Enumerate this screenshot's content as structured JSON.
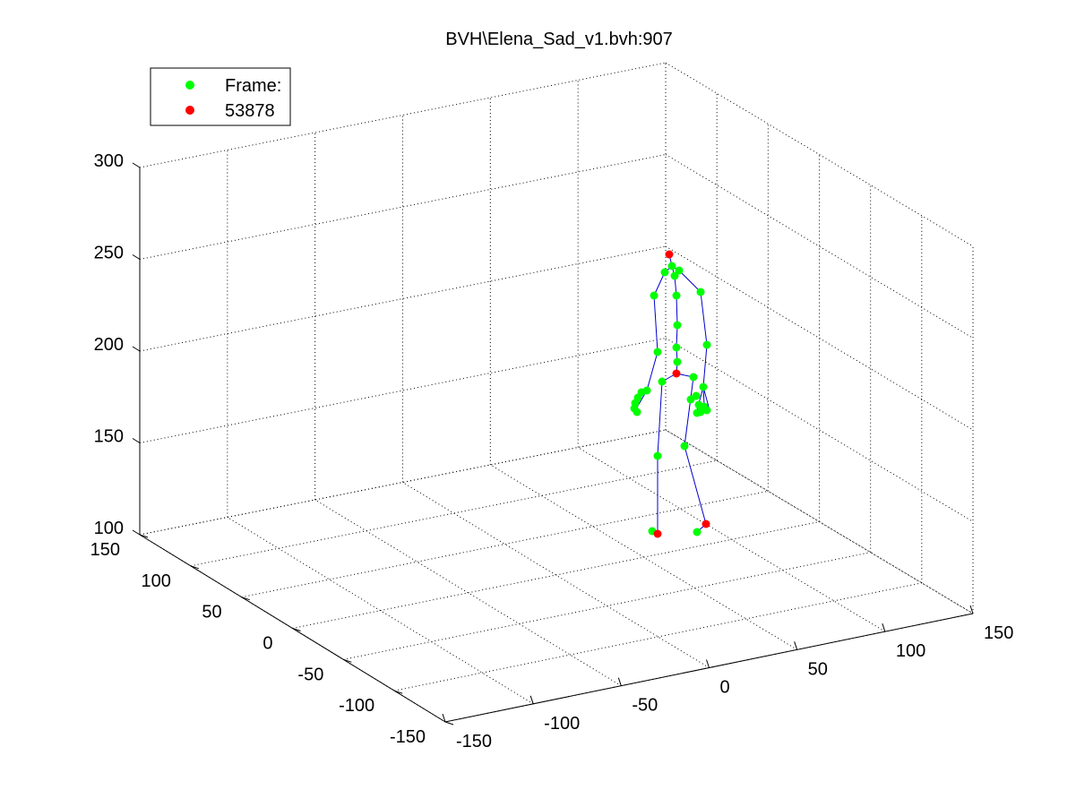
{
  "chart_data": {
    "type": "scatter",
    "title": "BVH\\Elena_Sad_v1.bvh:907",
    "legend": {
      "placement": "top-left",
      "entries": [
        {
          "label": "Frame:",
          "color": "#00ff00"
        },
        {
          "label": "53878",
          "color": "#ff0000"
        }
      ]
    },
    "z_ticks": [
      "100",
      "150",
      "200",
      "250",
      "300"
    ],
    "left_ticks": [
      "150",
      "100",
      "50",
      "0",
      "-50",
      "-100",
      "-150"
    ],
    "right_ticks": [
      "-150",
      "-100",
      "-50",
      "0",
      "50",
      "100",
      "150"
    ],
    "xlim": [
      -150,
      150
    ],
    "ylim": [
      -150,
      150
    ],
    "zlim": [
      100,
      300
    ],
    "grid": true,
    "colors": {
      "joint": "#00ff00",
      "end_effector": "#ff0000",
      "bone": "#0000cc"
    }
  }
}
